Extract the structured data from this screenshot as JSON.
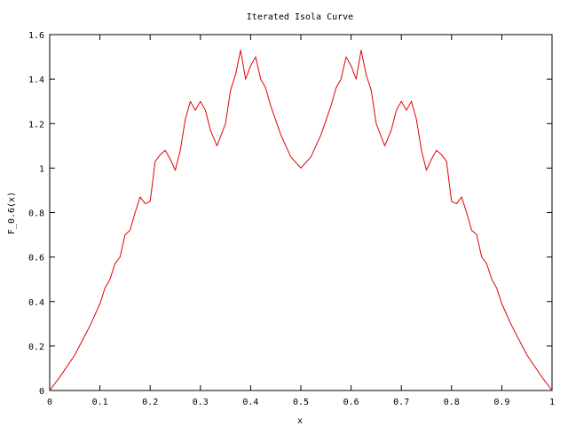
{
  "chart_data": {
    "type": "line",
    "title": "Iterated Isola Curve",
    "xlabel": "x",
    "ylabel": "F_0.6(x)",
    "xlim": [
      0,
      1
    ],
    "ylim": [
      0,
      1.6
    ],
    "x_ticks": [
      "0",
      "0.1",
      "0.2",
      "0.3",
      "0.4",
      "0.5",
      "0.6",
      "0.7",
      "0.8",
      "0.9",
      "1"
    ],
    "y_ticks": [
      "0",
      "0.2",
      "0.4",
      "0.6",
      "0.8",
      "1",
      "1.2",
      "1.4",
      "1.6"
    ],
    "grid": false,
    "legend": "none",
    "series": [
      {
        "color": "#e00000",
        "x": [
          0,
          0.02,
          0.05,
          0.08,
          0.1,
          0.11,
          0.12,
          0.13,
          0.14,
          0.15,
          0.16,
          0.17,
          0.18,
          0.19,
          0.2,
          0.21,
          0.22,
          0.23,
          0.24,
          0.25,
          0.26,
          0.27,
          0.28,
          0.29,
          0.3,
          0.31,
          0.32,
          0.333,
          0.35,
          0.36,
          0.37,
          0.38,
          0.39,
          0.4,
          0.41,
          0.42,
          0.43,
          0.44,
          0.46,
          0.48,
          0.5,
          0.52,
          0.54,
          0.56,
          0.57,
          0.58,
          0.59,
          0.6,
          0.61,
          0.62,
          0.63,
          0.64,
          0.65,
          0.667,
          0.68,
          0.69,
          0.7,
          0.71,
          0.72,
          0.73,
          0.74,
          0.75,
          0.76,
          0.77,
          0.78,
          0.79,
          0.8,
          0.81,
          0.82,
          0.83,
          0.84,
          0.85,
          0.86,
          0.87,
          0.88,
          0.89,
          0.9,
          0.92,
          0.95,
          0.98,
          1
        ],
        "y": [
          0,
          0.06,
          0.16,
          0.29,
          0.39,
          0.46,
          0.5,
          0.57,
          0.6,
          0.7,
          0.72,
          0.8,
          0.87,
          0.84,
          0.85,
          1.03,
          1.06,
          1.08,
          1.04,
          0.99,
          1.08,
          1.22,
          1.3,
          1.26,
          1.3,
          1.26,
          1.17,
          1.1,
          1.2,
          1.35,
          1.42,
          1.53,
          1.4,
          1.46,
          1.5,
          1.4,
          1.36,
          1.28,
          1.15,
          1.05,
          1.0,
          1.05,
          1.15,
          1.28,
          1.36,
          1.4,
          1.5,
          1.46,
          1.4,
          1.53,
          1.42,
          1.35,
          1.2,
          1.1,
          1.17,
          1.26,
          1.3,
          1.26,
          1.3,
          1.22,
          1.08,
          0.99,
          1.04,
          1.08,
          1.06,
          1.03,
          0.85,
          0.84,
          0.87,
          0.8,
          0.72,
          0.7,
          0.6,
          0.57,
          0.5,
          0.46,
          0.39,
          0.29,
          0.16,
          0.06,
          0
        ]
      }
    ]
  }
}
